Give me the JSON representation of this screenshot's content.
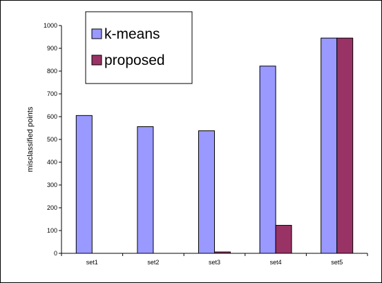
{
  "chart_data": {
    "type": "bar",
    "categories": [
      "set1",
      "set2",
      "set3",
      "set4",
      "set5"
    ],
    "series": [
      {
        "name": "k-means",
        "values": [
          605,
          556,
          538,
          822,
          945
        ],
        "color": "#9999FF"
      },
      {
        "name": "proposed",
        "values": [
          0,
          0,
          6,
          123,
          945
        ],
        "color": "#993366"
      }
    ],
    "ylabel": "misclassified points",
    "xlabel": "",
    "ylim": [
      0,
      1000
    ],
    "yticks": [
      "0",
      "100",
      "200",
      "300",
      "400",
      "500",
      "600",
      "700",
      "800",
      "900",
      "1000"
    ],
    "legend": {
      "placement": "top-left"
    },
    "grid": false
  }
}
